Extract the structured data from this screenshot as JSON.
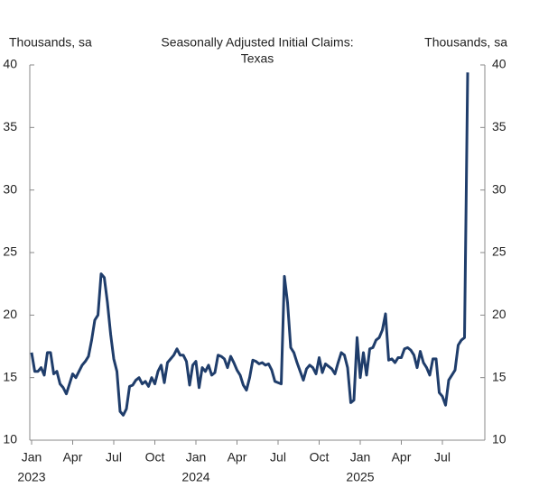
{
  "chart_data": {
    "type": "line",
    "title_lines": [
      "Seasonally Adjusted Initial Claims:",
      "Texas"
    ],
    "ylabel": "Thousands, sa",
    "y2label": "Thousands, sa",
    "categories": [
      "Jan",
      null,
      null,
      null,
      null,
      null,
      null,
      null,
      null,
      null,
      null,
      null,
      null,
      "Apr",
      null,
      null,
      null,
      null,
      null,
      null,
      null,
      null,
      null,
      null,
      null,
      null,
      "Jul",
      null,
      null,
      null,
      null,
      null,
      null,
      null,
      null,
      null,
      null,
      null,
      null,
      "Oct",
      null,
      null,
      null,
      null,
      null,
      null,
      null,
      null,
      null,
      null,
      null,
      null,
      "Jan",
      null,
      null,
      null,
      null,
      null,
      null,
      null,
      null,
      null,
      null,
      null,
      null,
      "Apr",
      null,
      null,
      null,
      null,
      null,
      null,
      null,
      null,
      null,
      null,
      null,
      null,
      "Jul",
      null,
      null,
      null,
      null,
      null,
      null,
      null,
      null,
      null,
      null,
      null,
      null,
      "Oct",
      null,
      null,
      null,
      null,
      null,
      null,
      null,
      null,
      null,
      null,
      null,
      null,
      "Jan",
      null,
      null,
      null,
      null,
      null,
      null,
      null,
      null,
      null,
      null,
      null,
      null,
      "Apr",
      null,
      null,
      null,
      null,
      null,
      null,
      null,
      null,
      null,
      null,
      null,
      null,
      "Jul",
      null,
      null,
      null,
      null,
      null,
      null,
      null,
      null
    ],
    "category_years": [
      "2023",
      null,
      null,
      null,
      null,
      null,
      null,
      null,
      null,
      null,
      null,
      null,
      null,
      null,
      null,
      null,
      null,
      null,
      null,
      null,
      null,
      null,
      null,
      null,
      null,
      null,
      null,
      null,
      null,
      null,
      null,
      null,
      null,
      null,
      null,
      null,
      null,
      null,
      null,
      null,
      null,
      null,
      null,
      null,
      null,
      null,
      null,
      null,
      null,
      null,
      null,
      null,
      "2024",
      null,
      null,
      null,
      null,
      null,
      null,
      null,
      null,
      null,
      null,
      null,
      null,
      null,
      null,
      null,
      null,
      null,
      null,
      null,
      null,
      null,
      null,
      null,
      null,
      null,
      null,
      null,
      null,
      null,
      null,
      null,
      null,
      null,
      null,
      null,
      null,
      null,
      null,
      null,
      null,
      null,
      null,
      null,
      null,
      null,
      null,
      null,
      null,
      null,
      null,
      null,
      "2025",
      null,
      null,
      null,
      null,
      null,
      null,
      null,
      null,
      null,
      null,
      null,
      null,
      null,
      null,
      null,
      null,
      null,
      null,
      null,
      null,
      null,
      null,
      null,
      null,
      null,
      null,
      null,
      null,
      null,
      null,
      null,
      null,
      null,
      null
    ],
    "series": [
      {
        "name": "Texas",
        "color": "#1f3d6b",
        "values": [
          17,
          15.5,
          15.5,
          15.8,
          15.2,
          17,
          17,
          15.3,
          15.5,
          14.5,
          14.2,
          13.7,
          14.5,
          15.3,
          15,
          15.5,
          16,
          16.3,
          16.7,
          18,
          19.6,
          20,
          23.3,
          23,
          21,
          18.5,
          16.5,
          15.5,
          12.3,
          12,
          12.5,
          14.3,
          14.4,
          14.8,
          15,
          14.5,
          14.7,
          14.3,
          15,
          14.5,
          15.5,
          16,
          14.6,
          16.2,
          16.5,
          16.8,
          17.3,
          16.8,
          16.8,
          16.3,
          14.4,
          16,
          16.3,
          14.2,
          15.8,
          15.5,
          16,
          15.2,
          15.4,
          16.8,
          16.7,
          16.5,
          15.8,
          16.7,
          16.2,
          15.6,
          15.2,
          14.4,
          14,
          15,
          16.4,
          16.3,
          16.1,
          16.2,
          16,
          16.1,
          15.6,
          14.7,
          14.6,
          14.5,
          23.1,
          21,
          17.4,
          17,
          16.2,
          15.5,
          14.8,
          15.7,
          16,
          15.8,
          15.3,
          16.6,
          15.4,
          16.1,
          15.9,
          15.7,
          15.3,
          16.2,
          17,
          16.8,
          15.8,
          13,
          13.2,
          18.2,
          15,
          17,
          15.2,
          17.3,
          17.4,
          18,
          18.2,
          18.8,
          20.1,
          16.4,
          16.5,
          16.2,
          16.6,
          16.6,
          17.3,
          17.4,
          17.2,
          16.8,
          15.8,
          17.1,
          16.2,
          15.8,
          15.2,
          16.5,
          16.5,
          13.8,
          13.5,
          12.8,
          14.8,
          15.2,
          15.6,
          17.6,
          18,
          18.2,
          39.4
        ]
      }
    ],
    "ylim": [
      10,
      40
    ],
    "yticks": [
      10,
      15,
      20,
      25,
      30,
      35,
      40
    ],
    "y2lim": [
      10,
      40
    ],
    "y2ticks": [
      10,
      15,
      20,
      25,
      30,
      35,
      40
    ],
    "grid": false
  }
}
